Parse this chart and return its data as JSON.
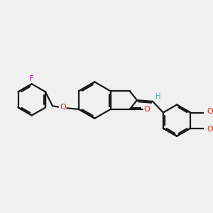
{
  "bg_color": "#f0f0f0",
  "bond_color": "#1a1a1a",
  "bond_width": 1.6,
  "atom_colors": {
    "O": "#e8220a",
    "F": "#cc00cc",
    "H": "#5a9fb0"
  },
  "figsize": [
    3.0,
    3.0
  ],
  "dpi": 100,
  "xlim": [
    -3.8,
    4.2
  ],
  "ylim": [
    -3.2,
    2.8
  ]
}
